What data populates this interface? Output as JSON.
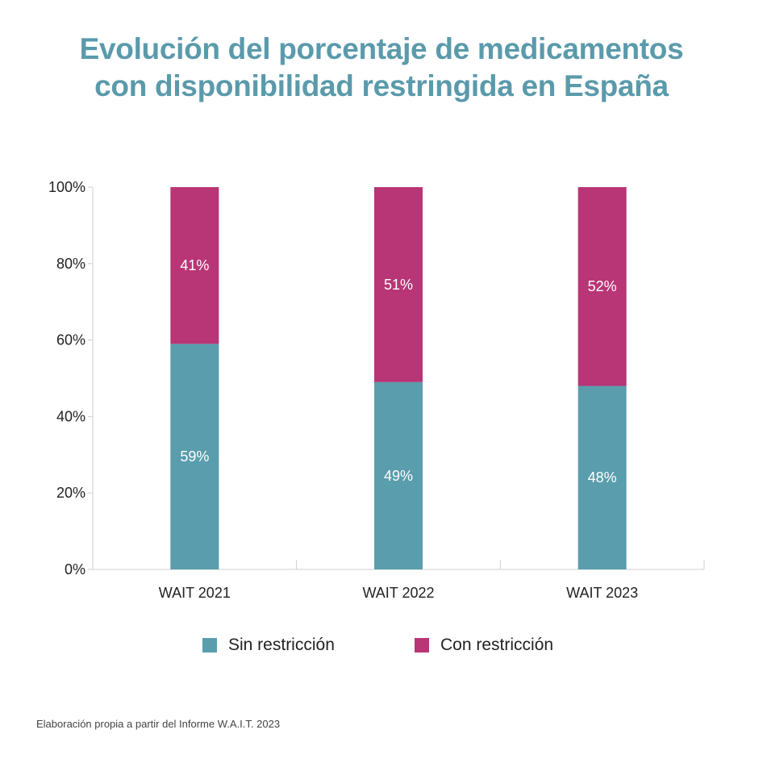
{
  "chart_data": {
    "type": "bar",
    "stacked": true,
    "title_lines": [
      "Evolución del porcentaje de medicamentos",
      "con disponibilidad restringida en España"
    ],
    "categories": [
      "WAIT 2021",
      "WAIT 2022",
      "WAIT 2023"
    ],
    "series": [
      {
        "name": "Sin restricción",
        "color": "#5a9dad",
        "values": [
          59,
          49,
          48
        ],
        "labels": [
          "59%",
          "49%",
          "48%"
        ]
      },
      {
        "name": "Con restricción",
        "color": "#b83576",
        "values": [
          41,
          51,
          52
        ],
        "labels": [
          "41%",
          "51%",
          "52%"
        ]
      }
    ],
    "ylim": [
      0,
      100
    ],
    "yticks": [
      0,
      20,
      40,
      60,
      80,
      100
    ],
    "ytick_labels": [
      "0%",
      "20%",
      "40%",
      "60%",
      "80%",
      "100%"
    ],
    "grid": false,
    "legend_position": "bottom"
  },
  "source": "Elaboración propia a partir del Informe W.A.I.T. 2023"
}
